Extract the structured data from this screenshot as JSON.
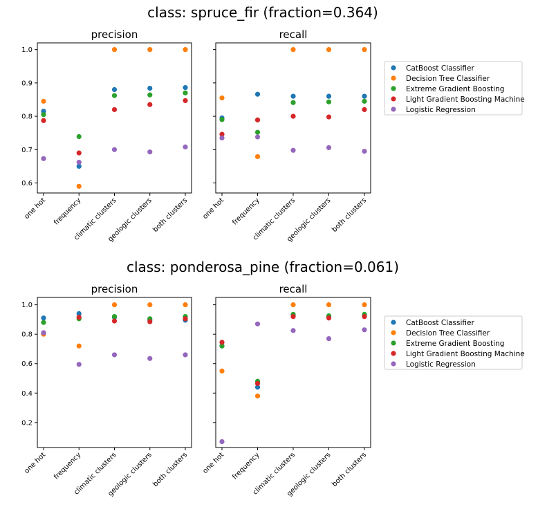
{
  "chart_data": [
    {
      "type": "scatter",
      "title": "class: spruce_fir (fraction=0.364)",
      "categories": [
        "one hot",
        "frequency",
        "climatic clusters",
        "geologic clusters",
        "both clusters"
      ],
      "panels": [
        {
          "title": "precision",
          "ylim": [
            0.57,
            1.02
          ],
          "yticks": [
            "0.6",
            "0.7",
            "0.8",
            "0.9",
            "1.0"
          ],
          "series": [
            {
              "name": "CatBoost Classifier",
              "values": [
                0.815,
                0.65,
                0.88,
                0.884,
                0.886
              ]
            },
            {
              "name": "Decision Tree Classifier",
              "values": [
                0.845,
                0.59,
                1.0,
                1.0,
                1.0
              ]
            },
            {
              "name": "Extreme Gradient Boosting",
              "values": [
                0.805,
                0.739,
                0.862,
                0.864,
                0.87
              ]
            },
            {
              "name": "Light Gradient Boosting Machine",
              "values": [
                0.787,
                0.69,
                0.82,
                0.835,
                0.847
              ]
            },
            {
              "name": "Logistic Regression",
              "values": [
                0.673,
                0.662,
                0.7,
                0.693,
                0.708
              ]
            }
          ]
        },
        {
          "title": "recall",
          "ylim": [
            0.57,
            1.02
          ],
          "yticks": [],
          "series": [
            {
              "name": "CatBoost Classifier",
              "values": [
                0.795,
                0.866,
                0.86,
                0.86,
                0.86
              ]
            },
            {
              "name": "Decision Tree Classifier",
              "values": [
                0.855,
                0.679,
                1.0,
                1.0,
                1.0
              ]
            },
            {
              "name": "Extreme Gradient Boosting",
              "values": [
                0.79,
                0.752,
                0.841,
                0.843,
                0.845
              ]
            },
            {
              "name": "Light Gradient Boosting Machine",
              "values": [
                0.746,
                0.789,
                0.8,
                0.798,
                0.82
              ]
            },
            {
              "name": "Logistic Regression",
              "values": [
                0.735,
                0.738,
                0.698,
                0.706,
                0.695
              ]
            }
          ]
        }
      ]
    },
    {
      "type": "scatter",
      "title": "class: ponderosa_pine (fraction=0.061)",
      "categories": [
        "one hot",
        "frequency",
        "climatic clusters",
        "geologic clusters",
        "both clusters"
      ],
      "panels": [
        {
          "title": "precision",
          "ylim": [
            0.03,
            1.05
          ],
          "yticks": [
            "0.2",
            "0.4",
            "0.6",
            "0.8",
            "1.0"
          ],
          "series": [
            {
              "name": "CatBoost Classifier",
              "values": [
                0.91,
                0.94,
                0.915,
                0.895,
                0.895
              ]
            },
            {
              "name": "Decision Tree Classifier",
              "values": [
                0.8,
                0.72,
                1.0,
                1.0,
                1.0
              ]
            },
            {
              "name": "Extreme Gradient Boosting",
              "values": [
                0.88,
                0.905,
                0.92,
                0.905,
                0.92
              ]
            },
            {
              "name": "Light Gradient Boosting Machine",
              "values": [
                0.81,
                0.915,
                0.89,
                0.885,
                0.905
              ]
            },
            {
              "name": "Logistic Regression",
              "values": [
                0.81,
                0.595,
                0.66,
                0.635,
                0.66
              ]
            }
          ]
        },
        {
          "title": "recall",
          "ylim": [
            0.03,
            1.05
          ],
          "yticks": [],
          "series": [
            {
              "name": "CatBoost Classifier",
              "values": [
                0.72,
                0.44,
                0.93,
                0.92,
                0.93
              ]
            },
            {
              "name": "Decision Tree Classifier",
              "values": [
                0.55,
                0.38,
                1.0,
                1.0,
                1.0
              ]
            },
            {
              "name": "Extreme Gradient Boosting",
              "values": [
                0.72,
                0.48,
                0.935,
                0.925,
                0.935
              ]
            },
            {
              "name": "Light Gradient Boosting Machine",
              "values": [
                0.745,
                0.465,
                0.92,
                0.91,
                0.92
              ]
            },
            {
              "name": "Logistic Regression",
              "values": [
                0.07,
                0.87,
                0.825,
                0.77,
                0.83
              ]
            }
          ]
        }
      ]
    }
  ],
  "legend": {
    "placement": "right",
    "entries": [
      {
        "name": "CatBoost Classifier",
        "color": "#1f77b4"
      },
      {
        "name": "Decision Tree Classifier",
        "color": "#ff7f0e"
      },
      {
        "name": "Extreme Gradient Boosting",
        "color": "#2ca02c"
      },
      {
        "name": "Light Gradient Boosting Machine",
        "color": "#d62728"
      },
      {
        "name": "Logistic Regression",
        "color": "#9467bd"
      }
    ]
  }
}
